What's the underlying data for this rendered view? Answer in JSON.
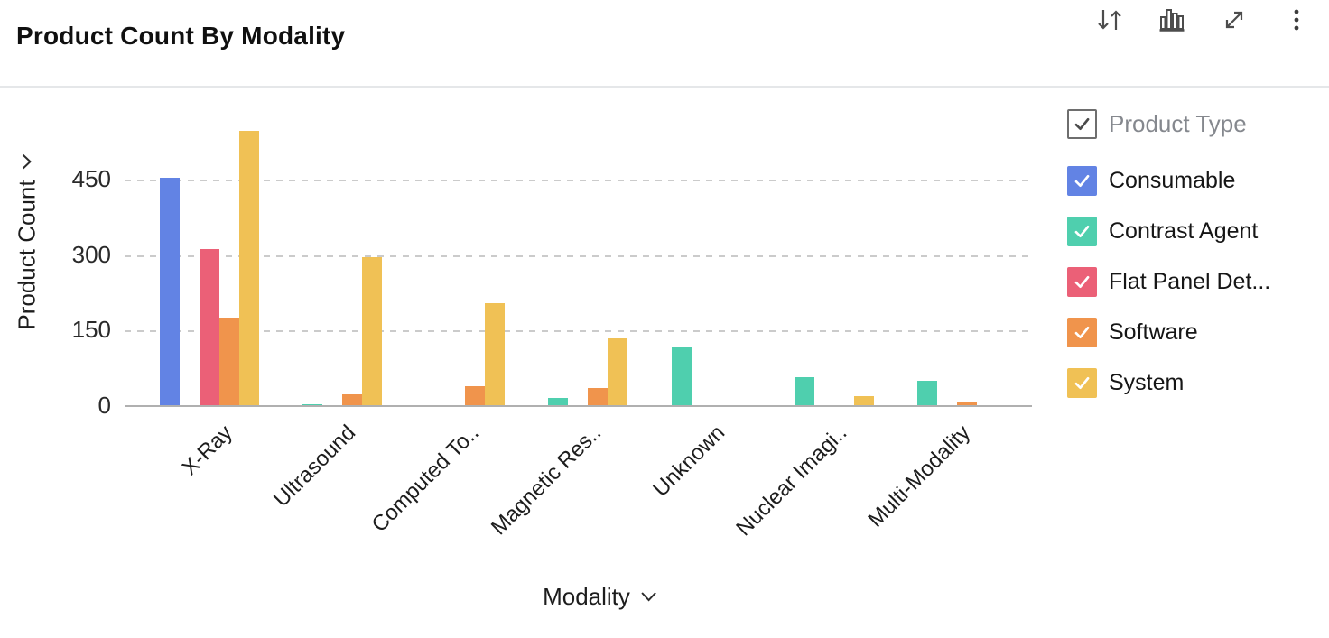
{
  "header": {
    "title": "Product Count By Modality",
    "icons": [
      "sort-icon",
      "chart-type-icon",
      "expand-icon",
      "more-menu-icon"
    ]
  },
  "legend": {
    "header": {
      "label": "Product Type",
      "checked": true
    },
    "items": [
      {
        "label": "Consumable",
        "color": "#6283e4",
        "checked": true
      },
      {
        "label": "Contrast Agent",
        "color": "#4fcfae",
        "checked": true
      },
      {
        "label": "Flat Panel Det...",
        "color": "#eb6077",
        "checked": true
      },
      {
        "label": "Software",
        "color": "#f0944c",
        "checked": true
      },
      {
        "label": "System",
        "color": "#f0c155",
        "checked": true
      }
    ]
  },
  "chart_data": {
    "type": "bar",
    "title": "Product Count By Modality",
    "xlabel": "Modality",
    "ylabel": "Product Count",
    "categories": [
      "X-Ray",
      "Ultrasound",
      "Computed To..",
      "Magnetic Res..",
      "Unknown",
      "Nuclear Imagi..",
      "Multi-Modality"
    ],
    "series": [
      {
        "name": "Consumable",
        "color": "#6283e4",
        "values": [
          453,
          0,
          0,
          0,
          0,
          0,
          0
        ]
      },
      {
        "name": "Contrast Agent",
        "color": "#4fcfae",
        "values": [
          0,
          4,
          0,
          16,
          118,
          57,
          50
        ]
      },
      {
        "name": "Flat Panel Det...",
        "color": "#eb6077",
        "values": [
          312,
          0,
          0,
          0,
          0,
          0,
          0
        ]
      },
      {
        "name": "Software",
        "color": "#f0944c",
        "values": [
          176,
          24,
          39,
          36,
          0,
          0,
          9
        ]
      },
      {
        "name": "System",
        "color": "#f0c155",
        "values": [
          547,
          295,
          205,
          135,
          0,
          20,
          0
        ]
      }
    ],
    "yticks": [
      450,
      300,
      150,
      0
    ],
    "ylim": [
      0,
      560
    ],
    "grid": "horizontal-dashed",
    "legend_position": "right"
  }
}
